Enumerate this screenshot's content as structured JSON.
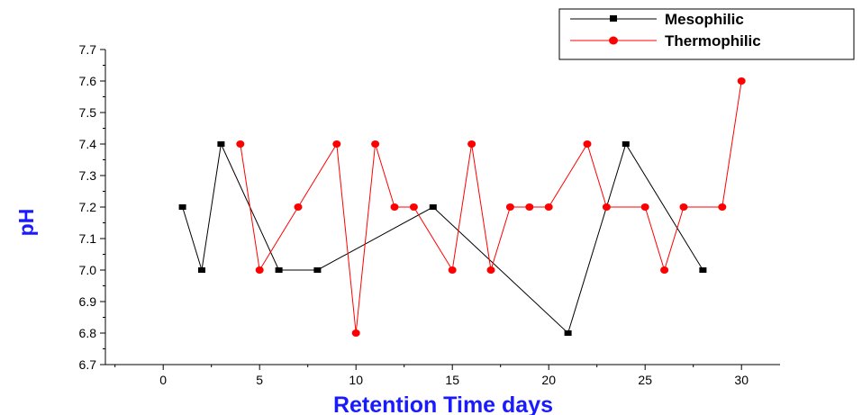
{
  "chart_data": {
    "type": "line",
    "xlabel": "Retention Time days",
    "ylabel": "pH",
    "xlim": [
      -3,
      32
    ],
    "ylim": [
      6.7,
      7.7
    ],
    "xticks": [
      0,
      5,
      10,
      15,
      20,
      25,
      30
    ],
    "yticks": [
      6.7,
      6.8,
      6.9,
      7.0,
      7.1,
      7.2,
      7.3,
      7.4,
      7.5,
      7.6,
      7.7
    ],
    "grid": false,
    "legend_position": "top-right",
    "series": [
      {
        "name": "Mesophilic",
        "color": "#000000",
        "marker": "square",
        "x": [
          1,
          2,
          3,
          6,
          8,
          14,
          21,
          24,
          28
        ],
        "y": [
          7.2,
          7.0,
          7.4,
          7.0,
          7.0,
          7.2,
          6.8,
          7.4,
          7.0
        ]
      },
      {
        "name": "Thermophilic",
        "color": "#ff0000",
        "marker": "circle",
        "x": [
          4,
          5,
          7,
          9,
          10,
          11,
          12,
          13,
          15,
          16,
          17,
          18,
          19,
          20,
          22,
          23,
          25,
          26,
          27,
          29,
          30
        ],
        "y": [
          7.4,
          7.0,
          7.2,
          7.4,
          6.8,
          7.4,
          7.2,
          7.2,
          7.0,
          7.4,
          7.0,
          7.2,
          7.2,
          7.2,
          7.4,
          7.2,
          7.2,
          7.0,
          7.2,
          7.2,
          7.6
        ]
      }
    ]
  }
}
